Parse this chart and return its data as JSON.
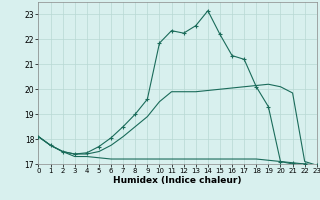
{
  "xlabel": "Humidex (Indice chaleur)",
  "xlim": [
    0,
    23
  ],
  "ylim": [
    17,
    23.5
  ],
  "yticks": [
    17,
    18,
    19,
    20,
    21,
    22,
    23
  ],
  "xticks": [
    0,
    1,
    2,
    3,
    4,
    5,
    6,
    7,
    8,
    9,
    10,
    11,
    12,
    13,
    14,
    15,
    16,
    17,
    18,
    19,
    20,
    21,
    22,
    23
  ],
  "bg_color": "#d8f0ee",
  "grid_color": "#b8d8d4",
  "line_color": "#1a6b5a",
  "line1_x": [
    0,
    1,
    2,
    3,
    4,
    5,
    6,
    7,
    8,
    9,
    10,
    11,
    12,
    13,
    14,
    15,
    16,
    17,
    18,
    19,
    20,
    21,
    22,
    23
  ],
  "line1_y": [
    18.1,
    17.75,
    17.5,
    17.3,
    17.3,
    17.25,
    17.2,
    17.2,
    17.2,
    17.2,
    17.2,
    17.2,
    17.2,
    17.2,
    17.2,
    17.2,
    17.2,
    17.2,
    17.2,
    17.15,
    17.1,
    17.0,
    17.0,
    16.95
  ],
  "line2_x": [
    0,
    1,
    2,
    3,
    4,
    5,
    6,
    7,
    8,
    9,
    10,
    11,
    12,
    13,
    14,
    15,
    16,
    17,
    18,
    19,
    20,
    21,
    22,
    23
  ],
  "line2_y": [
    18.1,
    17.75,
    17.5,
    17.4,
    17.4,
    17.5,
    17.75,
    18.1,
    18.5,
    18.9,
    19.5,
    19.9,
    19.9,
    19.9,
    19.95,
    20.0,
    20.05,
    20.1,
    20.15,
    20.2,
    20.1,
    19.85,
    17.1,
    16.95
  ],
  "line3_x": [
    0,
    1,
    2,
    3,
    4,
    5,
    6,
    7,
    8,
    9,
    10,
    11,
    12,
    13,
    14,
    15,
    16,
    17,
    18,
    19,
    20,
    21,
    22,
    23
  ],
  "line3_y": [
    18.1,
    17.75,
    17.5,
    17.4,
    17.45,
    17.7,
    18.05,
    18.5,
    19.0,
    19.6,
    21.85,
    22.35,
    22.25,
    22.55,
    23.15,
    22.2,
    21.35,
    21.2,
    20.1,
    19.3,
    17.1,
    17.05,
    17.0,
    16.95
  ]
}
